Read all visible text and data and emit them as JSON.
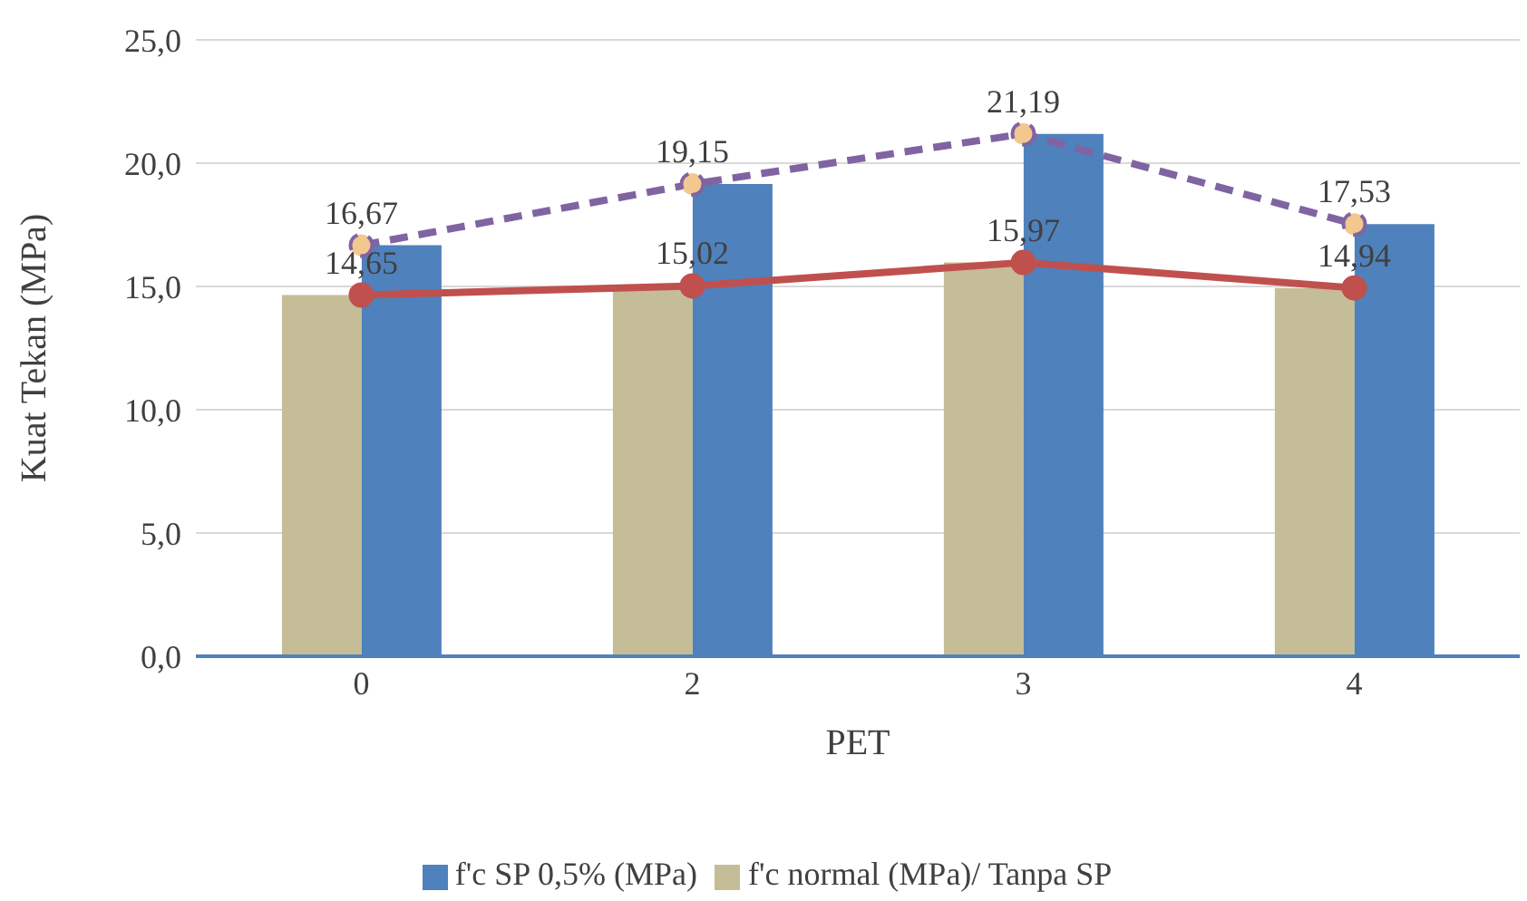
{
  "chart_data": {
    "type": "bar",
    "xlabel": "PET",
    "ylabel": "Kuat Tekan (MPa)",
    "categories": [
      "0",
      "2",
      "3",
      "4"
    ],
    "series": [
      {
        "name": "f'c normal (MPa)/ Tanpa SP",
        "color": "#c4bd97",
        "values": [
          14.65,
          15.02,
          15.97,
          14.94
        ]
      },
      {
        "name": "f'c SP 0,5% (MPa)",
        "color": "#4f81bd",
        "values": [
          16.67,
          19.15,
          21.19,
          17.53
        ]
      },
      {
        "type": "line",
        "color": "#c0504d",
        "values": [
          14.65,
          15.02,
          15.97,
          14.94
        ],
        "marker": "circle",
        "line_style": "solid",
        "value_labels": [
          "14,65",
          "15,02",
          "15,97",
          "14,94"
        ]
      },
      {
        "type": "line",
        "color": "#8064a2",
        "values": [
          16.67,
          19.15,
          21.19,
          17.53
        ],
        "marker": "circle",
        "line_style": "dashed",
        "value_labels": [
          "16,67",
          "19,15",
          "21,19",
          "17,53"
        ]
      }
    ],
    "ylim": [
      0,
      25
    ],
    "yticks": [
      {
        "value": 0,
        "label": "0,0"
      },
      {
        "value": 5,
        "label": "5,0"
      },
      {
        "value": 10,
        "label": "10,0"
      },
      {
        "value": 15,
        "label": "15,0"
      },
      {
        "value": 20,
        "label": "20,0"
      },
      {
        "value": 25,
        "label": "25,0"
      }
    ],
    "grid": "y",
    "legend": "bottom"
  }
}
